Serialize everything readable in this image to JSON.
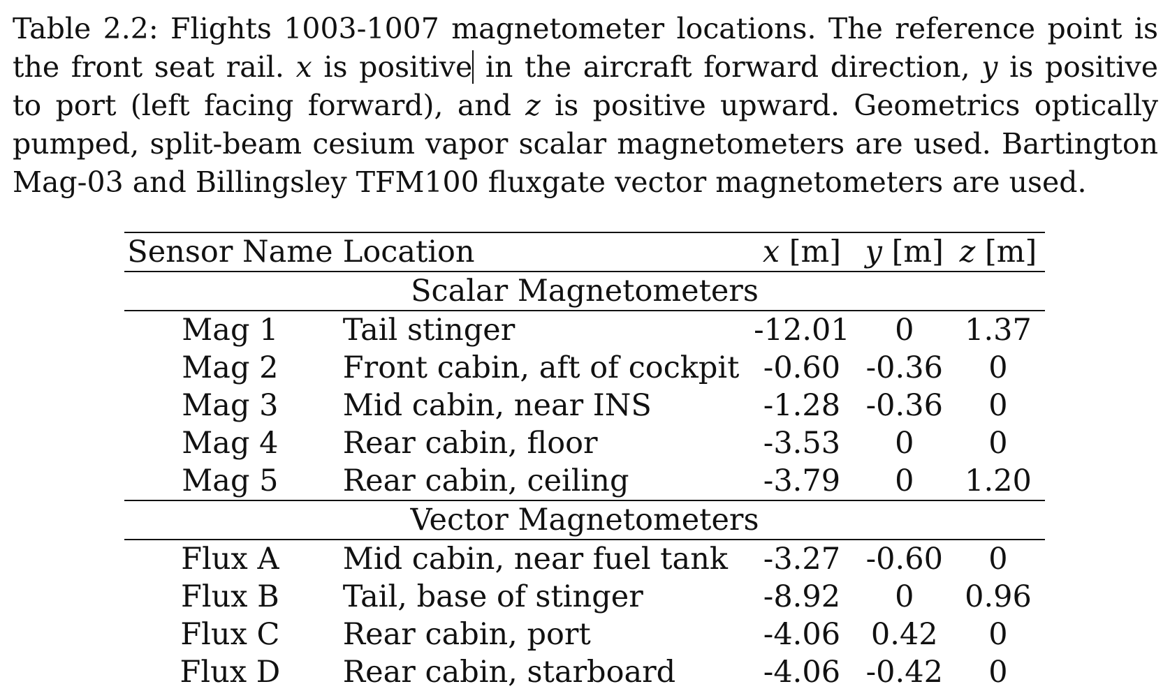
{
  "caption": {
    "part1": "Table 2.2: Flights 1003-1007 magnetometer locations. The reference point is the front seat rail. ",
    "var_x": "x",
    "part2": " is positive",
    "part3": " in the aircraft forward direction, ",
    "var_y": "y",
    "part4": " is positive to port (left facing forward), and ",
    "var_z": "z",
    "part5": " is positive upward. Geometrics optically pumped, split-beam cesium vapor scalar magnetometers are used. Bartington Mag-03 and Billingsley TFM100 fluxgate vector magnetometers are used."
  },
  "table": {
    "headers": {
      "sensor_name": "Sensor Name",
      "location": "Location",
      "x_var": "x",
      "x_unit": "[m]",
      "y_var": "y",
      "y_unit": "[m]",
      "z_var": "z",
      "z_unit": "[m]"
    },
    "sections": [
      {
        "title": "Scalar Magnetometers",
        "rows": [
          {
            "name": "Mag 1",
            "location": "Tail stinger",
            "x": "-12.01",
            "y": "0",
            "z": "1.37"
          },
          {
            "name": "Mag 2",
            "location": "Front cabin, aft of cockpit",
            "x": "-0.60",
            "y": "-0.36",
            "z": "0"
          },
          {
            "name": "Mag 3",
            "location": "Mid cabin, near INS",
            "x": "-1.28",
            "y": "-0.36",
            "z": "0"
          },
          {
            "name": "Mag 4",
            "location": "Rear cabin, floor",
            "x": "-3.53",
            "y": "0",
            "z": "0"
          },
          {
            "name": "Mag 5",
            "location": "Rear cabin, ceiling",
            "x": "-3.79",
            "y": "0",
            "z": "1.20"
          }
        ]
      },
      {
        "title": "Vector Magnetometers",
        "rows": [
          {
            "name": "Flux A",
            "location": "Mid cabin, near fuel tank",
            "x": "-3.27",
            "y": "-0.60",
            "z": "0"
          },
          {
            "name": "Flux B",
            "location": "Tail, base of stinger",
            "x": "-8.92",
            "y": "0",
            "z": "0.96"
          },
          {
            "name": "Flux C",
            "location": "Rear cabin, port",
            "x": "-4.06",
            "y": "0.42",
            "z": "0"
          },
          {
            "name": "Flux D",
            "location": "Rear cabin, starboard",
            "x": "-4.06",
            "y": "-0.42",
            "z": "0"
          }
        ]
      }
    ]
  }
}
